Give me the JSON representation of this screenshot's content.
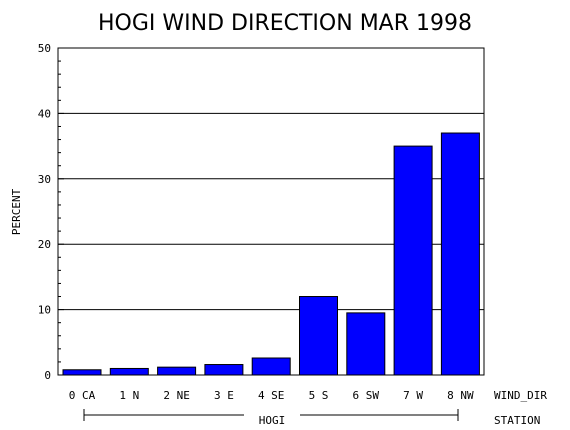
{
  "chart_data": {
    "type": "bar",
    "title": "HOGI WIND DIRECTION MAR 1998",
    "ylabel": "PERCENT",
    "xlabel": "WIND_DIR",
    "group_axis_label": "STATION",
    "group_label": "HOGI",
    "categories": [
      "0 CA",
      "1 N",
      "2 NE",
      "3 E",
      "4 SE",
      "5 S",
      "6 SW",
      "7 W",
      "8 NW"
    ],
    "values": [
      0.8,
      1.0,
      1.2,
      1.6,
      2.6,
      12.0,
      9.5,
      35.0,
      37.0
    ],
    "ylim": [
      0,
      50
    ],
    "yticks": [
      0,
      10,
      20,
      30,
      40,
      50
    ],
    "grid": true,
    "bar_color": "#0000ff"
  }
}
